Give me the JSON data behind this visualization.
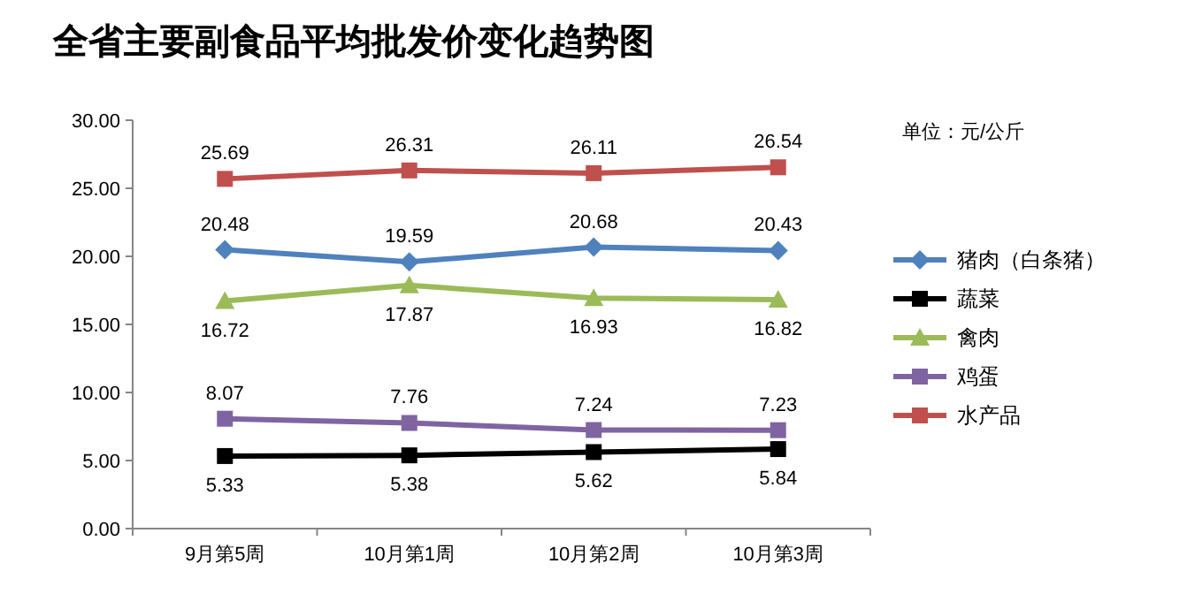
{
  "chart_data": {
    "type": "line",
    "title": "全省主要副食品平均批发价变化趋势图",
    "annotations": [
      "单位：元/公斤"
    ],
    "categories": [
      "9月第5周",
      "10月第1周",
      "10月第2周",
      "10月第3周"
    ],
    "series": [
      {
        "name": "猪肉（白条猪）",
        "color": "#4f81bd",
        "marker": "diamond",
        "values": [
          20.48,
          19.59,
          20.68,
          20.43
        ]
      },
      {
        "name": "蔬菜",
        "color": "#000000",
        "marker": "square",
        "values": [
          5.33,
          5.38,
          5.62,
          5.84
        ]
      },
      {
        "name": "禽肉",
        "color": "#9bbb59",
        "marker": "triangle",
        "values": [
          16.72,
          17.87,
          16.93,
          16.82
        ]
      },
      {
        "name": "鸡蛋",
        "color": "#8064a2",
        "marker": "square",
        "values": [
          8.07,
          7.76,
          7.24,
          7.23
        ]
      },
      {
        "name": "水产品",
        "color": "#c0504d",
        "marker": "square",
        "values": [
          25.69,
          26.31,
          26.11,
          26.54
        ]
      }
    ],
    "ylim": [
      0,
      30
    ],
    "yticks": [
      {
        "value": 0,
        "label": "0.00"
      },
      {
        "value": 5,
        "label": "5.00"
      },
      {
        "value": 10,
        "label": "10.00"
      },
      {
        "value": 15,
        "label": "15.00"
      },
      {
        "value": 20,
        "label": "20.00"
      },
      {
        "value": 25,
        "label": "25.00"
      },
      {
        "value": 30,
        "label": "30.00"
      }
    ],
    "grid": false,
    "legend": "right",
    "data_labels": true,
    "line_style": "solid"
  }
}
